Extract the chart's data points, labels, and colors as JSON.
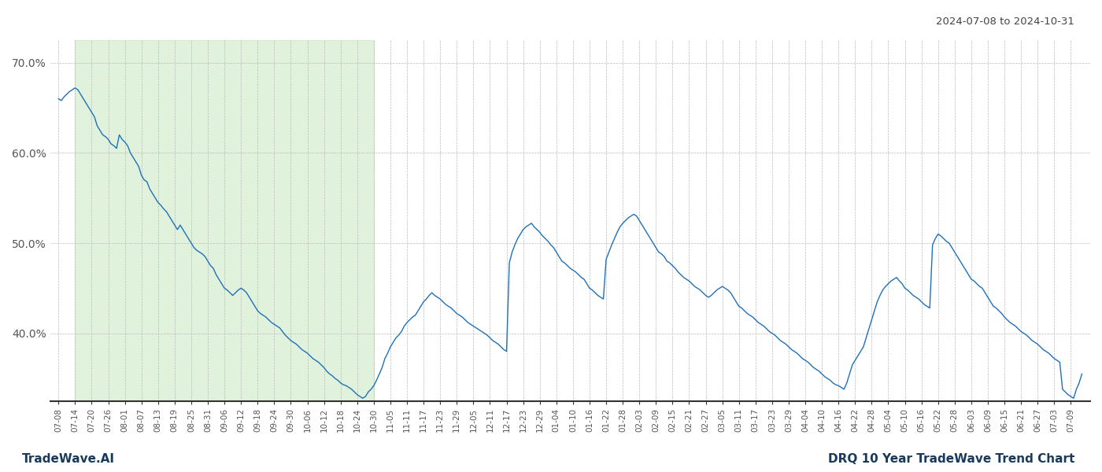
{
  "title_right": "2024-07-08 to 2024-10-31",
  "footer_left": "TradeWave.AI",
  "footer_right": "DRQ 10 Year TradeWave Trend Chart",
  "line_color": "#2070b8",
  "shade_color": "#c8e6c0",
  "shade_alpha": 0.55,
  "background_color": "#ffffff",
  "grid_color": "#bbbbbb",
  "ylim": [
    0.325,
    0.725
  ],
  "yticks": [
    0.4,
    0.5,
    0.6,
    0.7
  ],
  "ytick_labels": [
    "40.0%",
    "50.0%",
    "60.0%",
    "70.0%"
  ],
  "shade_start_label": "07-14",
  "shade_end_label": "10-30",
  "tick_step": 6,
  "values": [
    0.66,
    0.658,
    0.662,
    0.665,
    0.668,
    0.67,
    0.672,
    0.67,
    0.665,
    0.66,
    0.655,
    0.65,
    0.645,
    0.64,
    0.63,
    0.625,
    0.62,
    0.618,
    0.615,
    0.61,
    0.608,
    0.605,
    0.62,
    0.615,
    0.612,
    0.608,
    0.6,
    0.595,
    0.59,
    0.585,
    0.575,
    0.57,
    0.568,
    0.56,
    0.555,
    0.55,
    0.545,
    0.542,
    0.538,
    0.535,
    0.53,
    0.525,
    0.52,
    0.515,
    0.52,
    0.515,
    0.51,
    0.505,
    0.5,
    0.495,
    0.492,
    0.49,
    0.488,
    0.485,
    0.48,
    0.475,
    0.472,
    0.465,
    0.46,
    0.455,
    0.45,
    0.448,
    0.445,
    0.442,
    0.445,
    0.448,
    0.45,
    0.448,
    0.445,
    0.44,
    0.435,
    0.43,
    0.425,
    0.422,
    0.42,
    0.418,
    0.415,
    0.412,
    0.41,
    0.408,
    0.406,
    0.402,
    0.398,
    0.395,
    0.392,
    0.39,
    0.388,
    0.385,
    0.382,
    0.38,
    0.378,
    0.375,
    0.372,
    0.37,
    0.368,
    0.365,
    0.362,
    0.358,
    0.355,
    0.353,
    0.35,
    0.348,
    0.345,
    0.343,
    0.342,
    0.34,
    0.338,
    0.335,
    0.332,
    0.33,
    0.328,
    0.33,
    0.335,
    0.338,
    0.342,
    0.348,
    0.355,
    0.362,
    0.372,
    0.378,
    0.385,
    0.39,
    0.395,
    0.398,
    0.402,
    0.408,
    0.412,
    0.415,
    0.418,
    0.42,
    0.425,
    0.43,
    0.435,
    0.438,
    0.442,
    0.445,
    0.442,
    0.44,
    0.438,
    0.435,
    0.432,
    0.43,
    0.428,
    0.425,
    0.422,
    0.42,
    0.418,
    0.415,
    0.412,
    0.41,
    0.408,
    0.406,
    0.404,
    0.402,
    0.4,
    0.398,
    0.395,
    0.392,
    0.39,
    0.388,
    0.385,
    0.382,
    0.38,
    0.478,
    0.49,
    0.498,
    0.505,
    0.51,
    0.515,
    0.518,
    0.52,
    0.522,
    0.518,
    0.515,
    0.512,
    0.508,
    0.505,
    0.502,
    0.498,
    0.495,
    0.49,
    0.485,
    0.48,
    0.478,
    0.475,
    0.472,
    0.47,
    0.468,
    0.465,
    0.462,
    0.46,
    0.455,
    0.45,
    0.448,
    0.445,
    0.442,
    0.44,
    0.438,
    0.482,
    0.49,
    0.498,
    0.505,
    0.512,
    0.518,
    0.522,
    0.525,
    0.528,
    0.53,
    0.532,
    0.53,
    0.525,
    0.52,
    0.515,
    0.51,
    0.505,
    0.5,
    0.495,
    0.49,
    0.488,
    0.485,
    0.48,
    0.478,
    0.475,
    0.472,
    0.468,
    0.465,
    0.462,
    0.46,
    0.458,
    0.455,
    0.452,
    0.45,
    0.448,
    0.445,
    0.442,
    0.44,
    0.442,
    0.445,
    0.448,
    0.45,
    0.452,
    0.45,
    0.448,
    0.445,
    0.44,
    0.435,
    0.43,
    0.428,
    0.425,
    0.422,
    0.42,
    0.418,
    0.415,
    0.412,
    0.41,
    0.408,
    0.405,
    0.402,
    0.4,
    0.398,
    0.395,
    0.392,
    0.39,
    0.388,
    0.385,
    0.382,
    0.38,
    0.378,
    0.375,
    0.372,
    0.37,
    0.368,
    0.365,
    0.362,
    0.36,
    0.358,
    0.355,
    0.352,
    0.35,
    0.348,
    0.345,
    0.343,
    0.342,
    0.34,
    0.338,
    0.345,
    0.355,
    0.365,
    0.37,
    0.375,
    0.38,
    0.385,
    0.395,
    0.405,
    0.415,
    0.425,
    0.435,
    0.442,
    0.448,
    0.452,
    0.455,
    0.458,
    0.46,
    0.462,
    0.458,
    0.455,
    0.45,
    0.448,
    0.445,
    0.442,
    0.44,
    0.438,
    0.435,
    0.432,
    0.43,
    0.428,
    0.498,
    0.505,
    0.51,
    0.508,
    0.505,
    0.502,
    0.5,
    0.495,
    0.49,
    0.485,
    0.48,
    0.475,
    0.47,
    0.465,
    0.46,
    0.458,
    0.455,
    0.452,
    0.45,
    0.445,
    0.44,
    0.435,
    0.43,
    0.428,
    0.425,
    0.422,
    0.418,
    0.415,
    0.412,
    0.41,
    0.408,
    0.405,
    0.402,
    0.4,
    0.398,
    0.395,
    0.392,
    0.39,
    0.388,
    0.385,
    0.382,
    0.38,
    0.378,
    0.375,
    0.372,
    0.37,
    0.368,
    0.338,
    0.335,
    0.332,
    0.33,
    0.328,
    0.338,
    0.345,
    0.355
  ]
}
